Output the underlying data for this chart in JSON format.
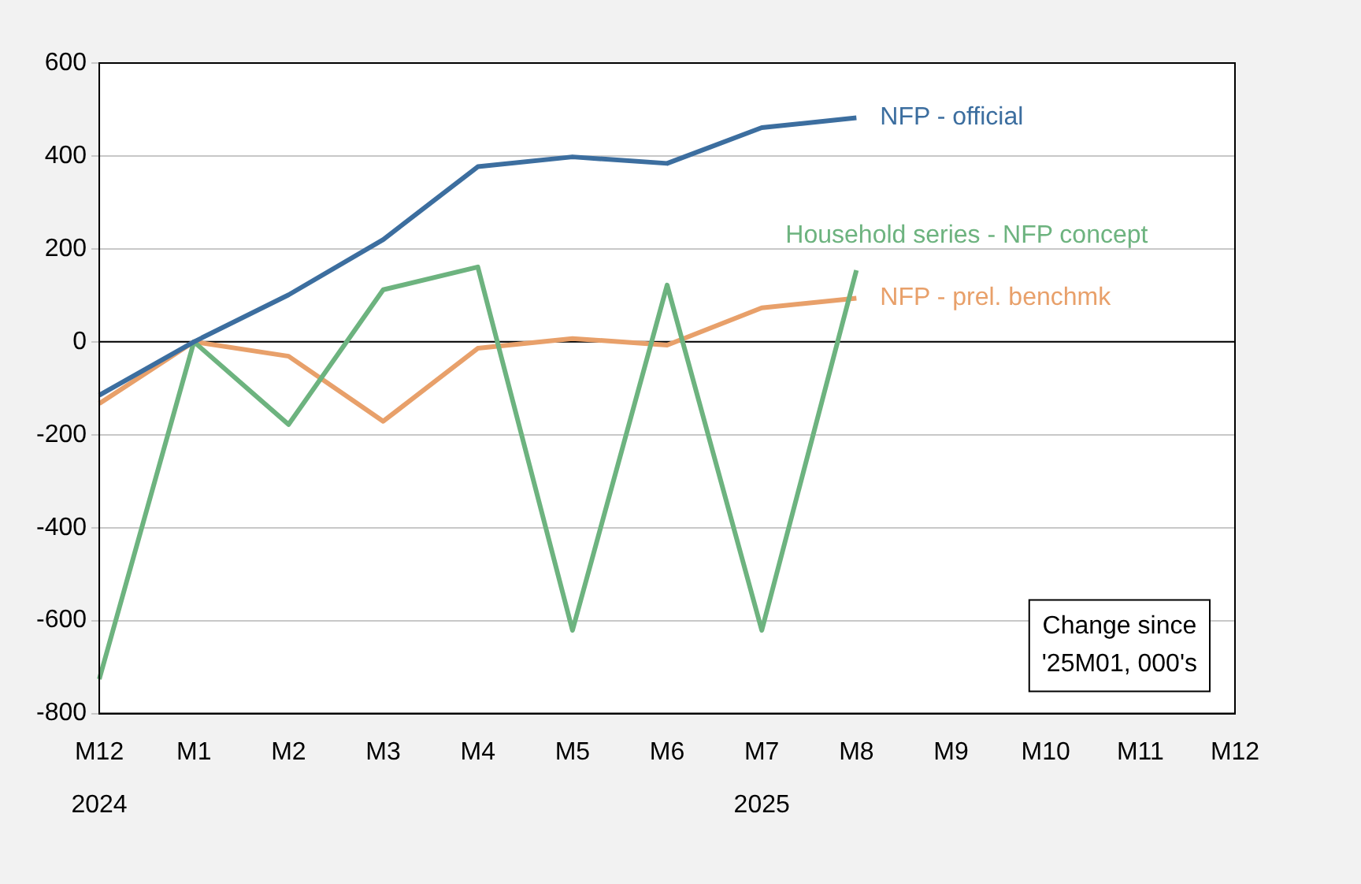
{
  "chart_data": {
    "type": "line",
    "categories": [
      "M12\n2024",
      "M1",
      "M2",
      "M3",
      "M4",
      "M5",
      "M6",
      "M7\n2025",
      "M8",
      "M9",
      "M10",
      "M11",
      "M12"
    ],
    "series": [
      {
        "name": "NFP - official",
        "color": "#3c6e9f",
        "values": [
          -115,
          0,
          101,
          220,
          377,
          398,
          384,
          461,
          482,
          null,
          null,
          null,
          null
        ]
      },
      {
        "name": "Household series - NFP concept",
        "color": "#6db37f",
        "values": [
          -726,
          0,
          -178,
          112,
          161,
          -621,
          122,
          -621,
          154,
          null,
          null,
          null,
          null
        ]
      },
      {
        "name": "NFP - prel. benchmk",
        "color": "#e8a06a",
        "values": [
          -133,
          0,
          -31,
          -171,
          -14,
          7,
          -7,
          73,
          94,
          null,
          null,
          null,
          null
        ]
      }
    ],
    "ylim": [
      -800,
      600
    ],
    "yticks": [
      -800,
      -600,
      -400,
      -200,
      0,
      200,
      400,
      600
    ],
    "grid": "y",
    "legend": false,
    "marker": "none",
    "line_style": "solid",
    "ref_lines": [
      {
        "axis": "y",
        "value": 0,
        "color": "#000000"
      }
    ],
    "annotations": [
      "Change since\n'25M01, 000's"
    ]
  }
}
